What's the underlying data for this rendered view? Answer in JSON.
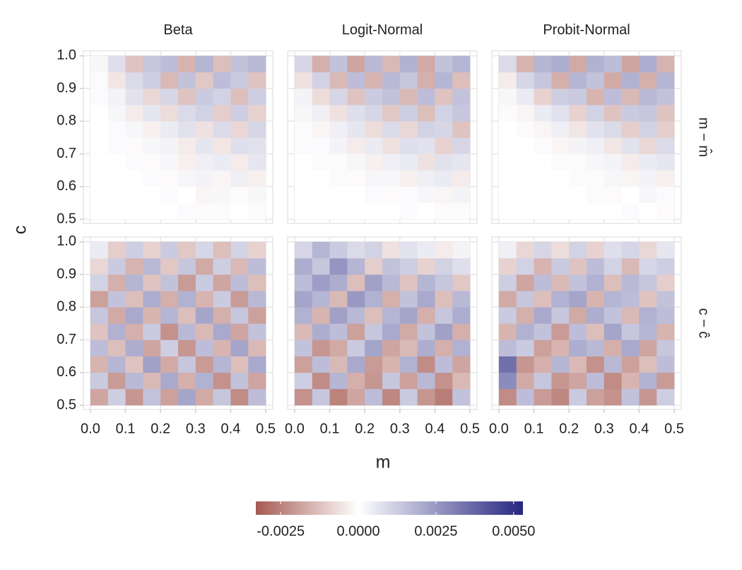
{
  "chart_data": {
    "type": "heatmap",
    "xlabel": "m",
    "ylabel": "c",
    "columns": [
      "Beta",
      "Logit-Normal",
      "Probit-Normal"
    ],
    "rows": [
      "m − m̂",
      "c − ĉ"
    ],
    "xlim": [
      -0.02,
      0.52
    ],
    "ylim": [
      0.487,
      1.015
    ],
    "xticks": [
      {
        "value": 0,
        "label": "0.0"
      },
      0.1,
      0.2,
      0.3,
      0.4,
      0.5
    ],
    "yticks": [
      0.5,
      0.6,
      0.7,
      0.8,
      0.9,
      {
        "value": 1,
        "label": "1.0"
      }
    ],
    "grid": true,
    "x_edges": [
      0,
      0.05,
      0.1,
      0.15,
      0.2,
      0.25,
      0.3,
      0.35,
      0.4,
      0.45,
      0.5
    ],
    "y_edges": [
      0.5,
      0.55,
      0.6,
      0.65,
      0.7,
      0.75,
      0.8,
      0.85,
      0.9,
      0.95,
      1
    ],
    "panels": [
      {
        "z": [
          [
            0,
            0,
            0,
            0,
            0,
            0.0001,
            -0.0001,
            0.0001,
            0,
            0.0001
          ],
          [
            0,
            0,
            0,
            0,
            0.0001,
            0,
            -0.0002,
            0.0002,
            -0.0001,
            0.0002
          ],
          [
            0,
            0,
            0,
            0.0001,
            -0.0001,
            0.0002,
            0.0003,
            -0.0002,
            0.0004,
            -0.0003
          ],
          [
            0,
            0,
            0.0001,
            -0.0001,
            0.0002,
            -0.0003,
            0.0004,
            0.0005,
            -0.0004,
            0.0006
          ],
          [
            0,
            0.0001,
            -0.0001,
            0.0002,
            0.0003,
            -0.0004,
            0.0006,
            -0.0005,
            0.0008,
            0.0007
          ],
          [
            0,
            0.0001,
            0.0002,
            -0.0003,
            0.0005,
            0.0007,
            -0.0006,
            0.0009,
            -0.0008,
            0.001
          ],
          [
            0,
            0.0002,
            -0.0004,
            0.0006,
            -0.0007,
            0.0009,
            0.0011,
            -0.001,
            0.0012,
            -0.0009
          ],
          [
            0.0001,
            0.0003,
            0.0007,
            -0.0008,
            0.001,
            -0.0012,
            0.0013,
            0.0011,
            -0.0013,
            0.0012
          ],
          [
            0.0001,
            -0.0005,
            0.0009,
            0.0012,
            -0.0014,
            0.0015,
            -0.0011,
            0.0016,
            0.0013,
            -0.0012
          ],
          [
            0.0002,
            0.0008,
            -0.0012,
            0.0014,
            0.0016,
            -0.0015,
            0.0018,
            -0.0013,
            0.0015,
            0.0017
          ]
        ]
      },
      {
        "z": [
          [
            0,
            0,
            0,
            0,
            0,
            0,
            0.0001,
            0,
            -0.0001,
            0.0001
          ],
          [
            0,
            0,
            0,
            0,
            0.0001,
            -0.0001,
            0.0001,
            0.0002,
            -0.0002,
            0.0003
          ],
          [
            0,
            0,
            0.0001,
            -0.0001,
            0.0002,
            0.0002,
            -0.0003,
            0.0004,
            0.0005,
            -0.0004
          ],
          [
            0,
            0.0001,
            -0.0001,
            0.0002,
            -0.0003,
            0.0004,
            0.0005,
            -0.0006,
            0.0007,
            0.0006
          ],
          [
            0.0001,
            0.0001,
            0.0003,
            -0.0004,
            0.0005,
            -0.0006,
            0.0008,
            0.0007,
            -0.0009,
            0.001
          ],
          [
            0.0001,
            -0.0002,
            0.0004,
            0.0006,
            -0.0007,
            0.0009,
            -0.0008,
            0.0011,
            0.001,
            -0.0012
          ],
          [
            0.0002,
            0.0004,
            -0.0006,
            0.0008,
            0.001,
            -0.0011,
            0.0012,
            -0.0013,
            0.0011,
            0.0014
          ],
          [
            0.0003,
            -0.0007,
            0.001,
            -0.0012,
            0.0013,
            0.0015,
            -0.0014,
            0.0016,
            -0.0012,
            0.0015
          ],
          [
            -0.0006,
            0.0011,
            -0.0014,
            0.0016,
            -0.0015,
            0.0017,
            0.0014,
            -0.0016,
            0.0018,
            -0.0013
          ],
          [
            0.001,
            -0.0016,
            0.0015,
            -0.0018,
            0.0017,
            -0.0014,
            0.0019,
            -0.0017,
            0.0015,
            0.0018
          ]
        ]
      },
      {
        "z": [
          [
            0,
            0,
            0,
            0,
            0,
            0,
            0,
            0.0001,
            0,
            -0.0001
          ],
          [
            0,
            0,
            0,
            0,
            0,
            0.0001,
            -0.0001,
            0,
            0.0002,
            0.0001
          ],
          [
            0,
            0,
            0,
            0,
            0.0001,
            -0.0001,
            0.0002,
            -0.0002,
            0.0003,
            -0.0003
          ],
          [
            0,
            0,
            0,
            0.0001,
            -0.0001,
            0.0002,
            0.0003,
            -0.0004,
            0.0005,
            0.0006
          ],
          [
            0,
            0,
            0.0001,
            -0.0002,
            0.0003,
            0.0004,
            -0.0005,
            0.0007,
            -0.0008,
            0.0009
          ],
          [
            0,
            0.0001,
            -0.0002,
            0.0004,
            -0.0005,
            0.0007,
            0.0009,
            -0.001,
            0.0011,
            -0.001
          ],
          [
            0.0001,
            -0.0002,
            0.0005,
            0.0007,
            -0.0009,
            0.0011,
            -0.0012,
            0.0013,
            0.0014,
            -0.0012
          ],
          [
            0.0002,
            0.0005,
            -0.0009,
            0.0012,
            0.0013,
            -0.0015,
            0.0016,
            -0.0014,
            0.0017,
            0.0015
          ],
          [
            -0.0004,
            0.001,
            0.0014,
            -0.0016,
            0.0018,
            0.0015,
            -0.0017,
            0.0019,
            -0.0016,
            0.0018
          ],
          [
            0.0009,
            -0.0015,
            0.0018,
            0.002,
            -0.0017,
            0.0019,
            0.0016,
            -0.0018,
            0.002,
            -0.0015
          ]
        ]
      },
      {
        "z": [
          [
            -0.0018,
            0.0012,
            -0.0021,
            0.0015,
            -0.0019,
            0.0022,
            -0.0017,
            0.0014,
            -0.0023,
            0.0016
          ],
          [
            0.0013,
            -0.002,
            0.0017,
            -0.0014,
            0.0021,
            -0.0016,
            0.0019,
            -0.0022,
            0.0015,
            -0.0018
          ],
          [
            -0.0015,
            0.0018,
            -0.0012,
            0.0023,
            -0.0017,
            0.0014,
            -0.002,
            0.0018,
            -0.0013,
            0.0021
          ],
          [
            0.0016,
            -0.0013,
            0.002,
            -0.0018,
            0.0012,
            -0.0021,
            0.0016,
            -0.0015,
            0.0022,
            -0.0014
          ],
          [
            -0.0012,
            0.0019,
            -0.0016,
            0.0013,
            -0.0022,
            0.0017,
            -0.0014,
            0.0021,
            -0.0018,
            0.0015
          ],
          [
            0.0014,
            -0.0017,
            0.0021,
            -0.0015,
            0.0018,
            -0.0013,
            0.0022,
            -0.0016,
            0.0014,
            -0.0019
          ],
          [
            -0.0019,
            0.0015,
            -0.0013,
            0.002,
            -0.0016,
            0.0019,
            -0.0015,
            0.0013,
            -0.002,
            0.0017
          ],
          [
            0.0011,
            -0.0016,
            0.0018,
            -0.0012,
            0.0015,
            -0.002,
            0.0013,
            -0.0018,
            0.0016,
            -0.0013
          ],
          [
            -0.0008,
            0.0013,
            -0.0015,
            0.0017,
            -0.0011,
            0.0014,
            -0.0017,
            0.0012,
            -0.0014,
            0.0016
          ],
          [
            0.0005,
            -0.001,
            0.0012,
            -0.0009,
            0.0013,
            -0.0011,
            0.001,
            -0.0013,
            0.0011,
            -0.0009
          ]
        ]
      },
      {
        "z": [
          [
            -0.0022,
            0.0014,
            -0.0025,
            -0.0018,
            0.0016,
            -0.0024,
            0.0013,
            -0.0021,
            -0.0026,
            0.0015
          ],
          [
            0.0012,
            -0.0023,
            0.0018,
            -0.0016,
            -0.0021,
            0.0014,
            -0.0019,
            0.0017,
            -0.0022,
            -0.0014
          ],
          [
            -0.0019,
            0.0016,
            -0.0014,
            0.0021,
            -0.002,
            -0.0015,
            0.0019,
            -0.0023,
            0.0016,
            -0.0018
          ],
          [
            0.0015,
            -0.0021,
            -0.0017,
            0.0013,
            0.0022,
            -0.0018,
            -0.0014,
            0.002,
            -0.0016,
            0.0019
          ],
          [
            -0.0014,
            0.002,
            0.0016,
            -0.0019,
            0.0014,
            0.0021,
            -0.0017,
            0.0015,
            0.0023,
            -0.0016
          ],
          [
            0.0019,
            -0.0015,
            0.0023,
            0.0017,
            -0.0013,
            0.0018,
            0.0022,
            -0.0016,
            0.0014,
            0.002
          ],
          [
            0.0022,
            0.0018,
            -0.0014,
            0.0025,
            0.0019,
            -0.0016,
            0.0015,
            0.0021,
            -0.0013,
            0.0017
          ],
          [
            0.0016,
            0.0024,
            0.002,
            -0.0013,
            0.0023,
            0.0017,
            -0.0012,
            0.0018,
            0.0014,
            -0.0011
          ],
          [
            0.002,
            0.0014,
            0.0026,
            0.0018,
            -0.001,
            0.0015,
            0.0012,
            -0.0009,
            0.0011,
            0.0008
          ],
          [
            0.001,
            0.0018,
            0.0013,
            0.0009,
            0.0011,
            -0.0006,
            0.0007,
            0.0005,
            -0.0004,
            0.0003
          ]
        ]
      },
      {
        "z": [
          [
            -0.0023,
            0.0016,
            -0.002,
            -0.0024,
            0.0013,
            -0.0019,
            -0.0022,
            0.0015,
            -0.0021,
            0.0012
          ],
          [
            0.0028,
            -0.0017,
            0.0014,
            -0.0021,
            -0.0018,
            0.0016,
            -0.0023,
            -0.0015,
            0.0019,
            -0.002
          ],
          [
            0.0035,
            -0.0021,
            -0.0016,
            0.0018,
            -0.0014,
            -0.0022,
            0.0017,
            -0.0019,
            -0.0013,
            0.0016
          ],
          [
            0.0016,
            0.0013,
            -0.0019,
            -0.0015,
            0.002,
            0.0017,
            -0.0016,
            0.0021,
            -0.0018,
            0.0014
          ],
          [
            -0.0015,
            0.0019,
            0.0015,
            -0.002,
            0.0016,
            -0.0013,
            0.0022,
            0.0014,
            0.0018,
            -0.0015
          ],
          [
            0.0013,
            -0.0016,
            0.0021,
            0.0014,
            -0.0017,
            0.002,
            0.0015,
            -0.0014,
            0.0019,
            0.0016
          ],
          [
            -0.0017,
            0.0014,
            -0.0013,
            0.0019,
            0.0022,
            -0.0015,
            0.0018,
            0.0016,
            -0.0012,
            0.0015
          ],
          [
            0.0012,
            -0.0018,
            0.0016,
            -0.0014,
            0.0015,
            0.0019,
            -0.0013,
            0.0017,
            0.0014,
            -0.001
          ],
          [
            -0.0009,
            0.0011,
            -0.0015,
            0.0013,
            -0.0012,
            0.0016,
            0.0011,
            -0.0014,
            0.001,
            0.0012
          ],
          [
            0.0004,
            -0.0008,
            0.001,
            -0.0007,
            0.0011,
            -0.0009,
            0.0008,
            0.001,
            -0.0008,
            0.0006
          ]
        ]
      }
    ],
    "colorbar": {
      "limits": [
        -0.0033,
        0.0053
      ],
      "colors": [
        "#a65a52",
        "#ffffff",
        "#262680"
      ],
      "ticks": [
        {
          "value": -0.0025,
          "label": "-0.0025"
        },
        {
          "value": 0,
          "label": "0.0000"
        },
        {
          "value": 0.0025,
          "label": "0.0025"
        },
        {
          "value": 0.005,
          "label": "0.0050"
        }
      ]
    }
  }
}
